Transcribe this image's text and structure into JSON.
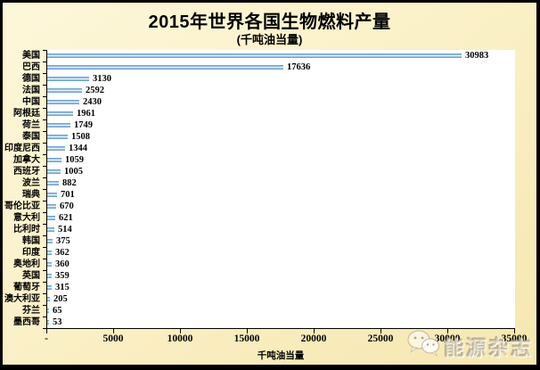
{
  "header": {
    "title": "2015年世界各国生物燃料产量",
    "subtitle": "(千吨油当量)"
  },
  "chart_data": {
    "type": "bar",
    "orientation": "horizontal",
    "title": "2015年世界各国生物燃料产量",
    "subtitle": "(千吨油当量)",
    "categories": [
      "美国",
      "巴西",
      "德国",
      "法国",
      "中国",
      "阿根廷",
      "荷兰",
      "泰国",
      "印度尼西",
      "加拿大",
      "西班牙",
      "波兰",
      "瑞典",
      "哥伦比亚",
      "意大利",
      "比利时",
      "韩国",
      "印度",
      "奥地利",
      "英国",
      "葡萄牙",
      "澳大利亚",
      "芬兰",
      "墨西哥"
    ],
    "values": [
      30983,
      17636,
      3130,
      2592,
      2430,
      1961,
      1749,
      1508,
      1344,
      1059,
      1005,
      882,
      701,
      670,
      621,
      514,
      375,
      362,
      360,
      359,
      315,
      205,
      65,
      53
    ],
    "xlabel": "千吨油当量",
    "xlim": [
      0,
      35000
    ],
    "xticks": [
      0,
      5000,
      10000,
      15000,
      20000,
      25000,
      30000,
      35000
    ],
    "xtick_labels": [
      "-",
      "5000",
      "10000",
      "15000",
      "20000",
      "25000",
      "30000",
      "35000"
    ],
    "grid": false,
    "legend": null,
    "data_labels": true,
    "bar_color": "#6FA8DC",
    "plot_background": "#FFFFFF",
    "page_background": "#FBF1C8"
  },
  "watermark": {
    "text": "能源杂志",
    "logo": "wechat-icon"
  }
}
